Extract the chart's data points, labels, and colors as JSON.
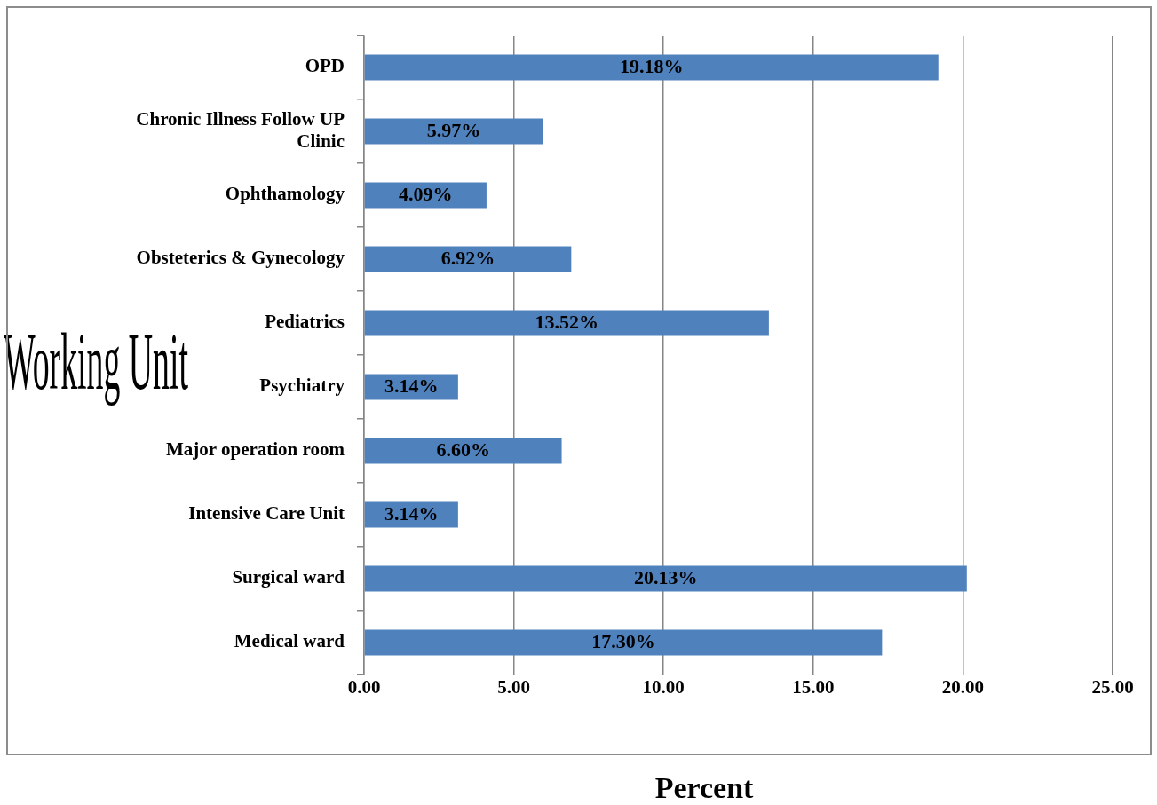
{
  "chart_data": {
    "type": "bar",
    "orientation": "horizontal",
    "xlabel": "Percent",
    "ylabel": "Working Unit",
    "categories": [
      "OPD",
      "Chronic Illness Follow UP Clinic",
      "Ophthamology",
      "Obsteterics & Gynecology",
      "Pediatrics",
      "Psychiatry",
      "Major operation room",
      "Intensive Care Unit",
      "Surgical ward",
      "Medical ward"
    ],
    "values": [
      19.18,
      5.97,
      4.09,
      6.92,
      13.52,
      3.14,
      6.6,
      3.14,
      20.13,
      17.3
    ],
    "value_labels": [
      "19.18%",
      "5.97%",
      "4.09%",
      "6.92%",
      "13.52%",
      "3.14%",
      "6.60%",
      "3.14%",
      "20.13%",
      "17.30%"
    ],
    "color": "#4f81bd",
    "xlim": [
      0,
      25
    ],
    "xticks": [
      {
        "value": 0,
        "label": "0.00"
      },
      {
        "value": 5,
        "label": "5.00"
      },
      {
        "value": 10,
        "label": "10.00"
      },
      {
        "value": 15,
        "label": "15.00"
      },
      {
        "value": 20,
        "label": "20.00"
      },
      {
        "value": 25,
        "label": "25.00"
      }
    ],
    "grid": "x",
    "legend": false
  }
}
